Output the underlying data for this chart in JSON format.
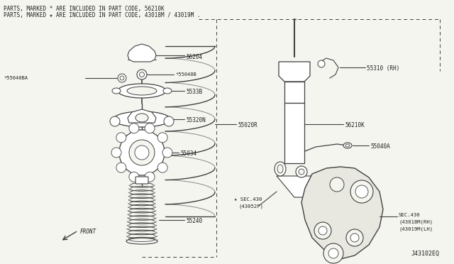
{
  "background_color": "#f5f5f0",
  "line_color": "#404040",
  "text_color": "#202020",
  "header_line1": "PARTS, MARKED * ARE INCLUDED IN PART CODE, 56210K",
  "header_line2": "PARTS, MARKED ★ ARE INCLUDED IN PART CODE, 43018M / 43019M .",
  "diagram_id": "J43102EQ",
  "figsize": [
    6.4,
    3.72
  ],
  "dpi": 100
}
